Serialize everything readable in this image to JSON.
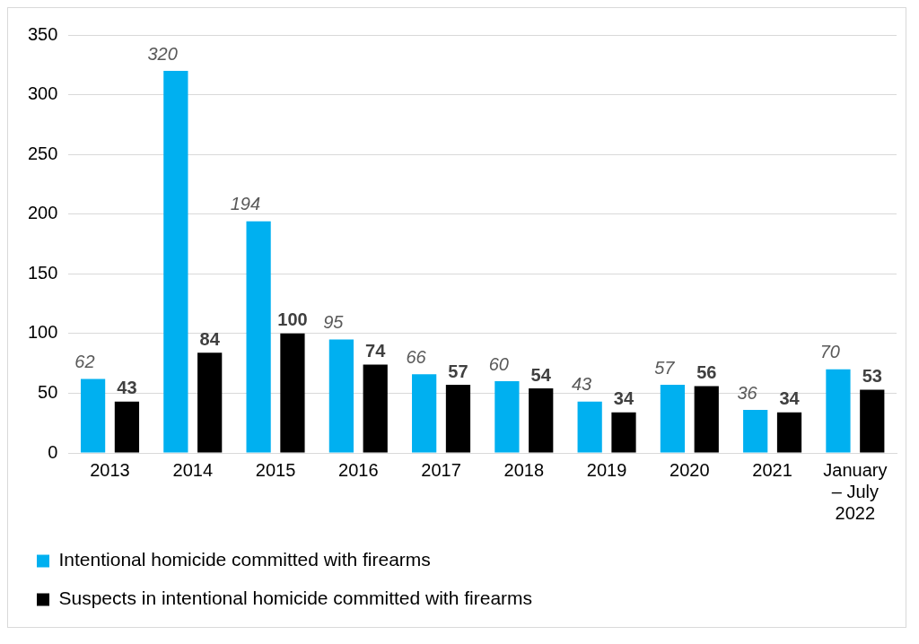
{
  "chart_data": {
    "type": "bar",
    "categories": [
      "2013",
      "2014",
      "2015",
      "2016",
      "2017",
      "2018",
      "2019",
      "2020",
      "2021",
      "January – July 2022"
    ],
    "series": [
      {
        "name": "Intentional homicide committed with firearms",
        "color": "#00b0f0",
        "values": [
          62,
          320,
          194,
          95,
          66,
          60,
          43,
          57,
          36,
          70
        ]
      },
      {
        "name": "Suspects in intentional homicide committed with firearms",
        "color": "#000000",
        "values": [
          43,
          84,
          100,
          74,
          57,
          54,
          34,
          56,
          34,
          53
        ]
      }
    ],
    "ylim": [
      0,
      350
    ],
    "yticks": [
      0,
      50,
      100,
      150,
      200,
      250,
      300,
      350
    ],
    "grid": "y",
    "legend": "bottom",
    "data_labels": true
  }
}
